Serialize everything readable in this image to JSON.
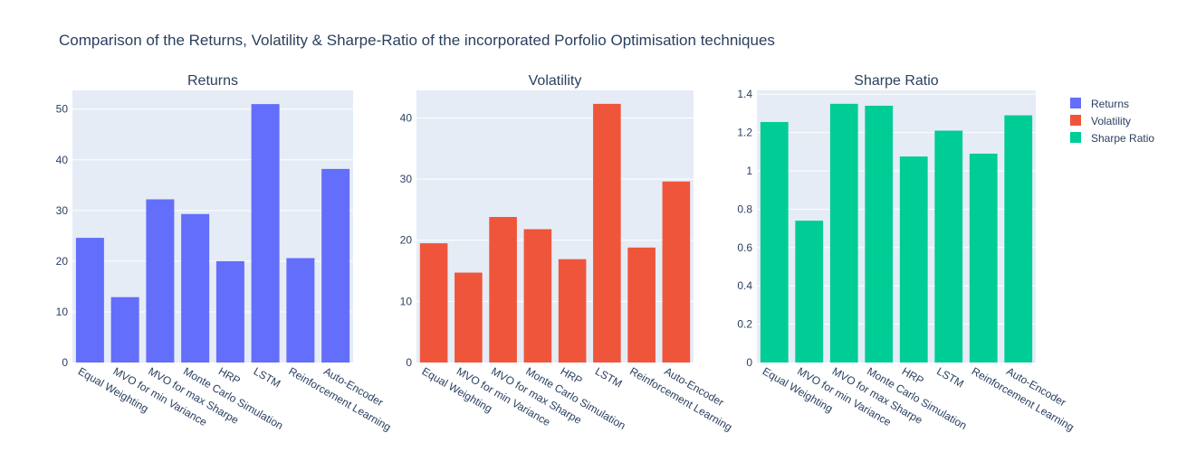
{
  "title": "Comparison of the Returns, Volatility & Sharpe-Ratio of the incorporated Porfolio Optimisation techniques",
  "colors": {
    "returns": "#636efa",
    "volatility": "#ef553b",
    "sharpe": "#00cc96"
  },
  "legend": [
    {
      "label": "Returns",
      "color": "#636efa"
    },
    {
      "label": "Volatility",
      "color": "#ef553b"
    },
    {
      "label": "Sharpe Ratio",
      "color": "#00cc96"
    }
  ],
  "chart_data": [
    {
      "type": "bar",
      "title": "Returns",
      "categories": [
        "Equal Weighting",
        "MVO for min Variance",
        "MVO for max Sharpe",
        "Monte Carlo Simulation",
        "HRP",
        "LSTM",
        "Reinforcement Learning",
        "Auto-Encoder"
      ],
      "series": [
        {
          "name": "Returns",
          "values": [
            24.6,
            12.9,
            32.2,
            29.3,
            20.0,
            51.0,
            20.6,
            38.2
          ]
        }
      ],
      "ylim": [
        0,
        53.7
      ],
      "yticks": [
        0,
        10,
        20,
        30,
        40,
        50
      ],
      "ytick_labels": [
        "0",
        "10",
        "20",
        "30",
        "40",
        "50"
      ],
      "color": "#636efa",
      "grid": true
    },
    {
      "type": "bar",
      "title": "Volatility",
      "categories": [
        "Equal Weighting",
        "MVO for min Variance",
        "MVO for max Sharpe",
        "Monte Carlo Simulation",
        "HRP",
        "LSTM",
        "Reinforcement Learning",
        "Auto-Encoder"
      ],
      "series": [
        {
          "name": "Volatility",
          "values": [
            19.5,
            14.7,
            23.8,
            21.8,
            16.9,
            42.3,
            18.8,
            29.6
          ]
        }
      ],
      "ylim": [
        0,
        44.5
      ],
      "yticks": [
        0,
        10,
        20,
        30,
        40
      ],
      "ytick_labels": [
        "0",
        "10",
        "20",
        "30",
        "40"
      ],
      "color": "#ef553b",
      "grid": true
    },
    {
      "type": "bar",
      "title": "Sharpe Ratio",
      "categories": [
        "Equal Weighting",
        "MVO for min Variance",
        "MVO for max Sharpe",
        "Monte Carlo Simulation",
        "HRP",
        "LSTM",
        "Reinforcement Learning",
        "Auto-Encoder"
      ],
      "series": [
        {
          "name": "Sharpe Ratio",
          "values": [
            1.255,
            0.74,
            1.35,
            1.34,
            1.075,
            1.21,
            1.09,
            1.29
          ]
        }
      ],
      "ylim": [
        0,
        1.42
      ],
      "yticks": [
        0,
        0.2,
        0.4,
        0.6,
        0.8,
        1,
        1.2,
        1.4
      ],
      "ytick_labels": [
        "0",
        "0.2",
        "0.4",
        "0.6",
        "0.8",
        "1",
        "1.2",
        "1.4"
      ],
      "color": "#00cc96",
      "grid": true
    }
  ]
}
